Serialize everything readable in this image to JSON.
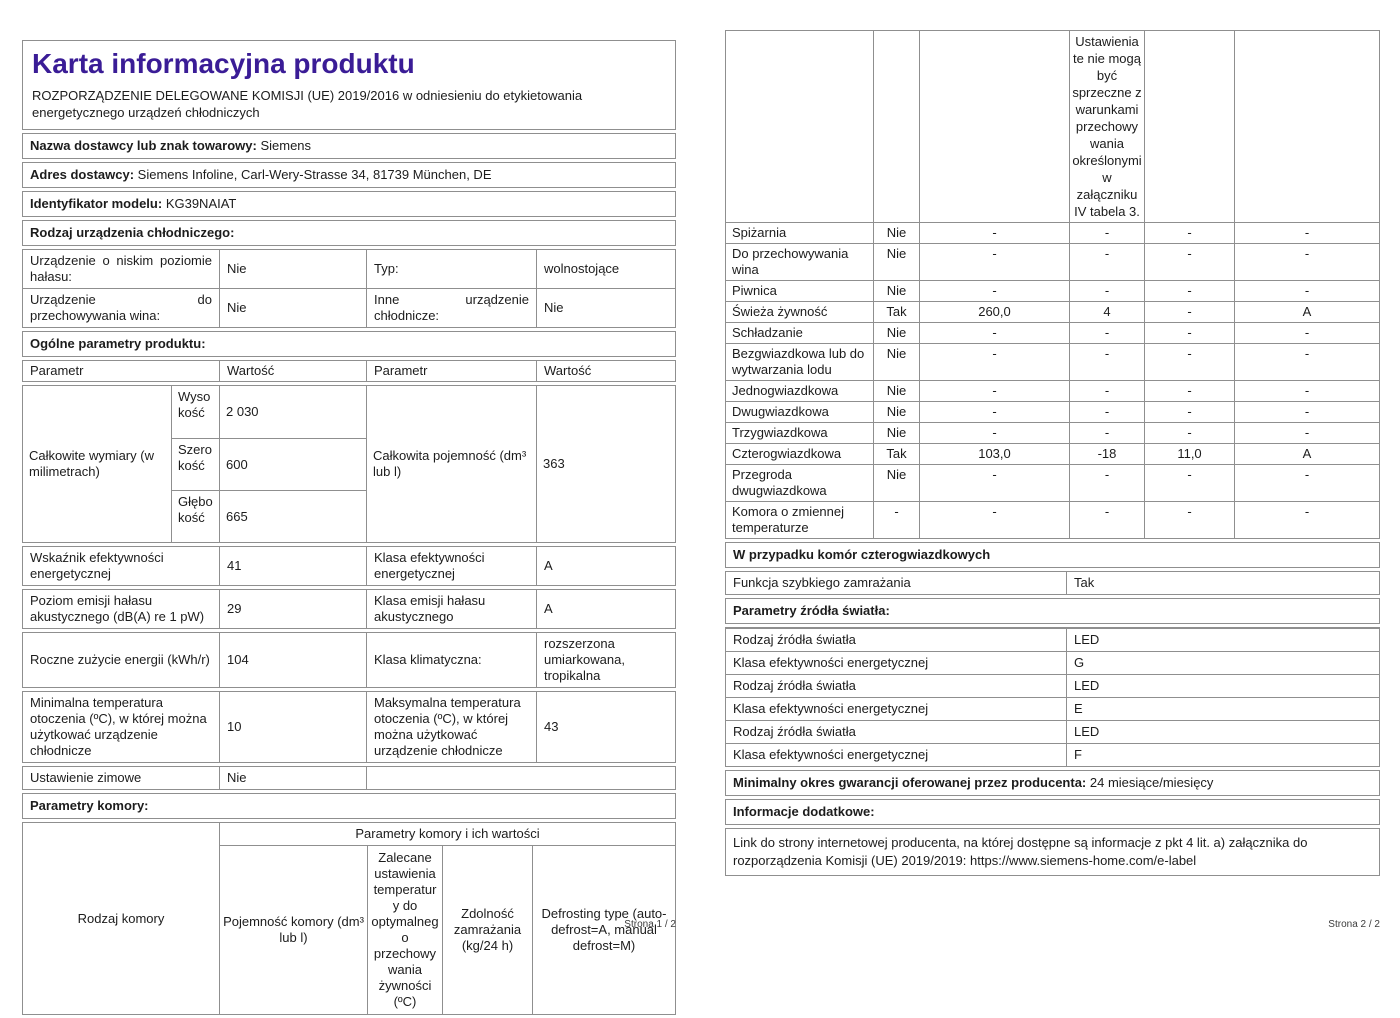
{
  "accent_color": "#3a1c96",
  "border_color": "#8f8f8f",
  "page1": {
    "title": "Karta informacyjna produktu",
    "regulation": "ROZPORZĄDZENIE DELEGOWANE KOMISJI (UE) 2019/2016 w odniesieniu do etykietowania energetycznego urządzeń chłodniczych",
    "supplier": {
      "label": "Nazwa dostawcy lub znak towarowy:",
      "value": "Siemens"
    },
    "address": {
      "label": "Adres dostawcy:",
      "value": "Siemens Infoline, Carl-Wery-Strasse 34, 81739 München, DE"
    },
    "model": {
      "label": "Identyfikator modelu:",
      "value": "KG39NAIAT"
    },
    "device_type_header": "Rodzaj urządzenia chłodniczego:",
    "device_type": {
      "low_noise_label": "Urządzenie o niskim poziomie hałasu:",
      "low_noise_value": "Nie",
      "type_label": "Typ:",
      "type_value": "wolnostojące",
      "wine_label": "Urządzenie do przechowywania wina:",
      "wine_value": "Nie",
      "other_label": "Inne urządzenie chłodnicze:",
      "other_value": "Nie"
    },
    "general_header": "Ogólne parametry produktu:",
    "columns": [
      "Parametr",
      "Wartość",
      "Parametr",
      "Wartość"
    ],
    "dimensions": {
      "label": "Całkowite wymiary (w milimetrach)",
      "rows": [
        {
          "name": "Wysokość",
          "value": "2 030"
        },
        {
          "name": "Szerokość",
          "value": "600"
        },
        {
          "name": "Głębokość",
          "value": "665"
        }
      ],
      "capacity_label": "Całkowita pojemność (dm³ lub l)",
      "capacity_value": "363"
    },
    "general_rows": [
      [
        "Wskaźnik efektywności energetycznej",
        "41",
        "Klasa efektywności energetycznej",
        "A"
      ],
      [
        "Poziom emisji hałasu akustycznego (dB(A) re 1 pW)",
        "29",
        "Klasa emisji hałasu akustycznego",
        "A"
      ],
      [
        "Roczne zużycie energii (kWh/r)",
        "104",
        "Klasa klimatyczna:",
        "rozszerzona umiarkowana, tropikalna"
      ],
      [
        "Minimalna temperatura otoczenia (ºC), w której można użytkować urządzenie chłodnicze",
        "10",
        "Maksymalna temperatura otoczenia (ºC), w której można użytkować urządzenie chłodnicze",
        "43"
      ]
    ],
    "winter": {
      "label": "Ustawienie zimowe",
      "value": "Nie"
    },
    "chamber_header": "Parametry komory:",
    "chamber_table": {
      "row_label": "Rodzaj komory",
      "band": "Parametry komory i ich wartości",
      "columns": [
        "Pojemność komory (dm³ lub l)",
        "Zalecane ustawienia temperatury do optymalnego przechowywania żywności (ºC)",
        "Zdolność zamrażania (kg/24 h)",
        "Defrosting type (auto-defrost=A, manual defrost=M)"
      ]
    },
    "footer": "Strona 1 / 2"
  },
  "page2": {
    "continuation_note": "Ustawienia te nie mogą być sprzeczne z warunkami przechowywania określonymi w załączniku IV tabela 3.",
    "chamber_rows": [
      [
        "Spiżarnia",
        "Nie",
        "-",
        "-",
        "-",
        "-"
      ],
      [
        "Do przechowywania wina",
        "Nie",
        "-",
        "-",
        "-",
        "-"
      ],
      [
        "Piwnica",
        "Nie",
        "-",
        "-",
        "-",
        "-"
      ],
      [
        "Świeża żywność",
        "Tak",
        "260,0",
        "4",
        "-",
        "A"
      ],
      [
        "Schładzanie",
        "Nie",
        "-",
        "-",
        "-",
        "-"
      ],
      [
        "Bezgwiazdkowa lub do wytwarzania lodu",
        "Nie",
        "-",
        "-",
        "-",
        "-"
      ],
      [
        "Jednogwiazdkowa",
        "Nie",
        "-",
        "-",
        "-",
        "-"
      ],
      [
        "Dwugwiazdkowa",
        "Nie",
        "-",
        "-",
        "-",
        "-"
      ],
      [
        "Trzygwiazdkowa",
        "Nie",
        "-",
        "-",
        "-",
        "-"
      ],
      [
        "Czterogwiazdkowa",
        "Tak",
        "103,0",
        "-18",
        "11,0",
        "A"
      ],
      [
        "Przegroda dwugwiazdkowa",
        "Nie",
        "-",
        "-",
        "-",
        "-"
      ],
      [
        "Komora o zmiennej temperaturze",
        "-",
        "-",
        "-",
        "-",
        "-"
      ]
    ],
    "four_star_header": "W przypadku komór czterogwiazdkowych",
    "fast_freeze": {
      "label": "Funkcja szybkiego zamrażania",
      "value": "Tak"
    },
    "light_header": "Parametry źródła światła:",
    "light_rows": [
      {
        "label": "Rodzaj źródła światła",
        "value": "LED"
      },
      {
        "label": "Klasa efektywności energetycznej",
        "value": "G"
      },
      {
        "label": "Rodzaj źródła światła",
        "value": "LED"
      },
      {
        "label": "Klasa efektywności energetycznej",
        "value": "E"
      },
      {
        "label": "Rodzaj źródła światła",
        "value": "LED"
      },
      {
        "label": "Klasa efektywności energetycznej",
        "value": "F"
      }
    ],
    "warranty": {
      "label": "Minimalny okres gwarancji oferowanej przez producenta:",
      "value": "24 miesiące/miesięcy"
    },
    "additional_header": "Informacje dodatkowe:",
    "link": {
      "label": "Link do strony internetowej producenta, na której dostępne są informacje z pkt 4 lit. a) załącznika do rozporządzenia Komisji (UE) 2019/2019:",
      "url": "https://www.siemens-home.com/e-label"
    },
    "footer": "Strona 2 / 2"
  }
}
